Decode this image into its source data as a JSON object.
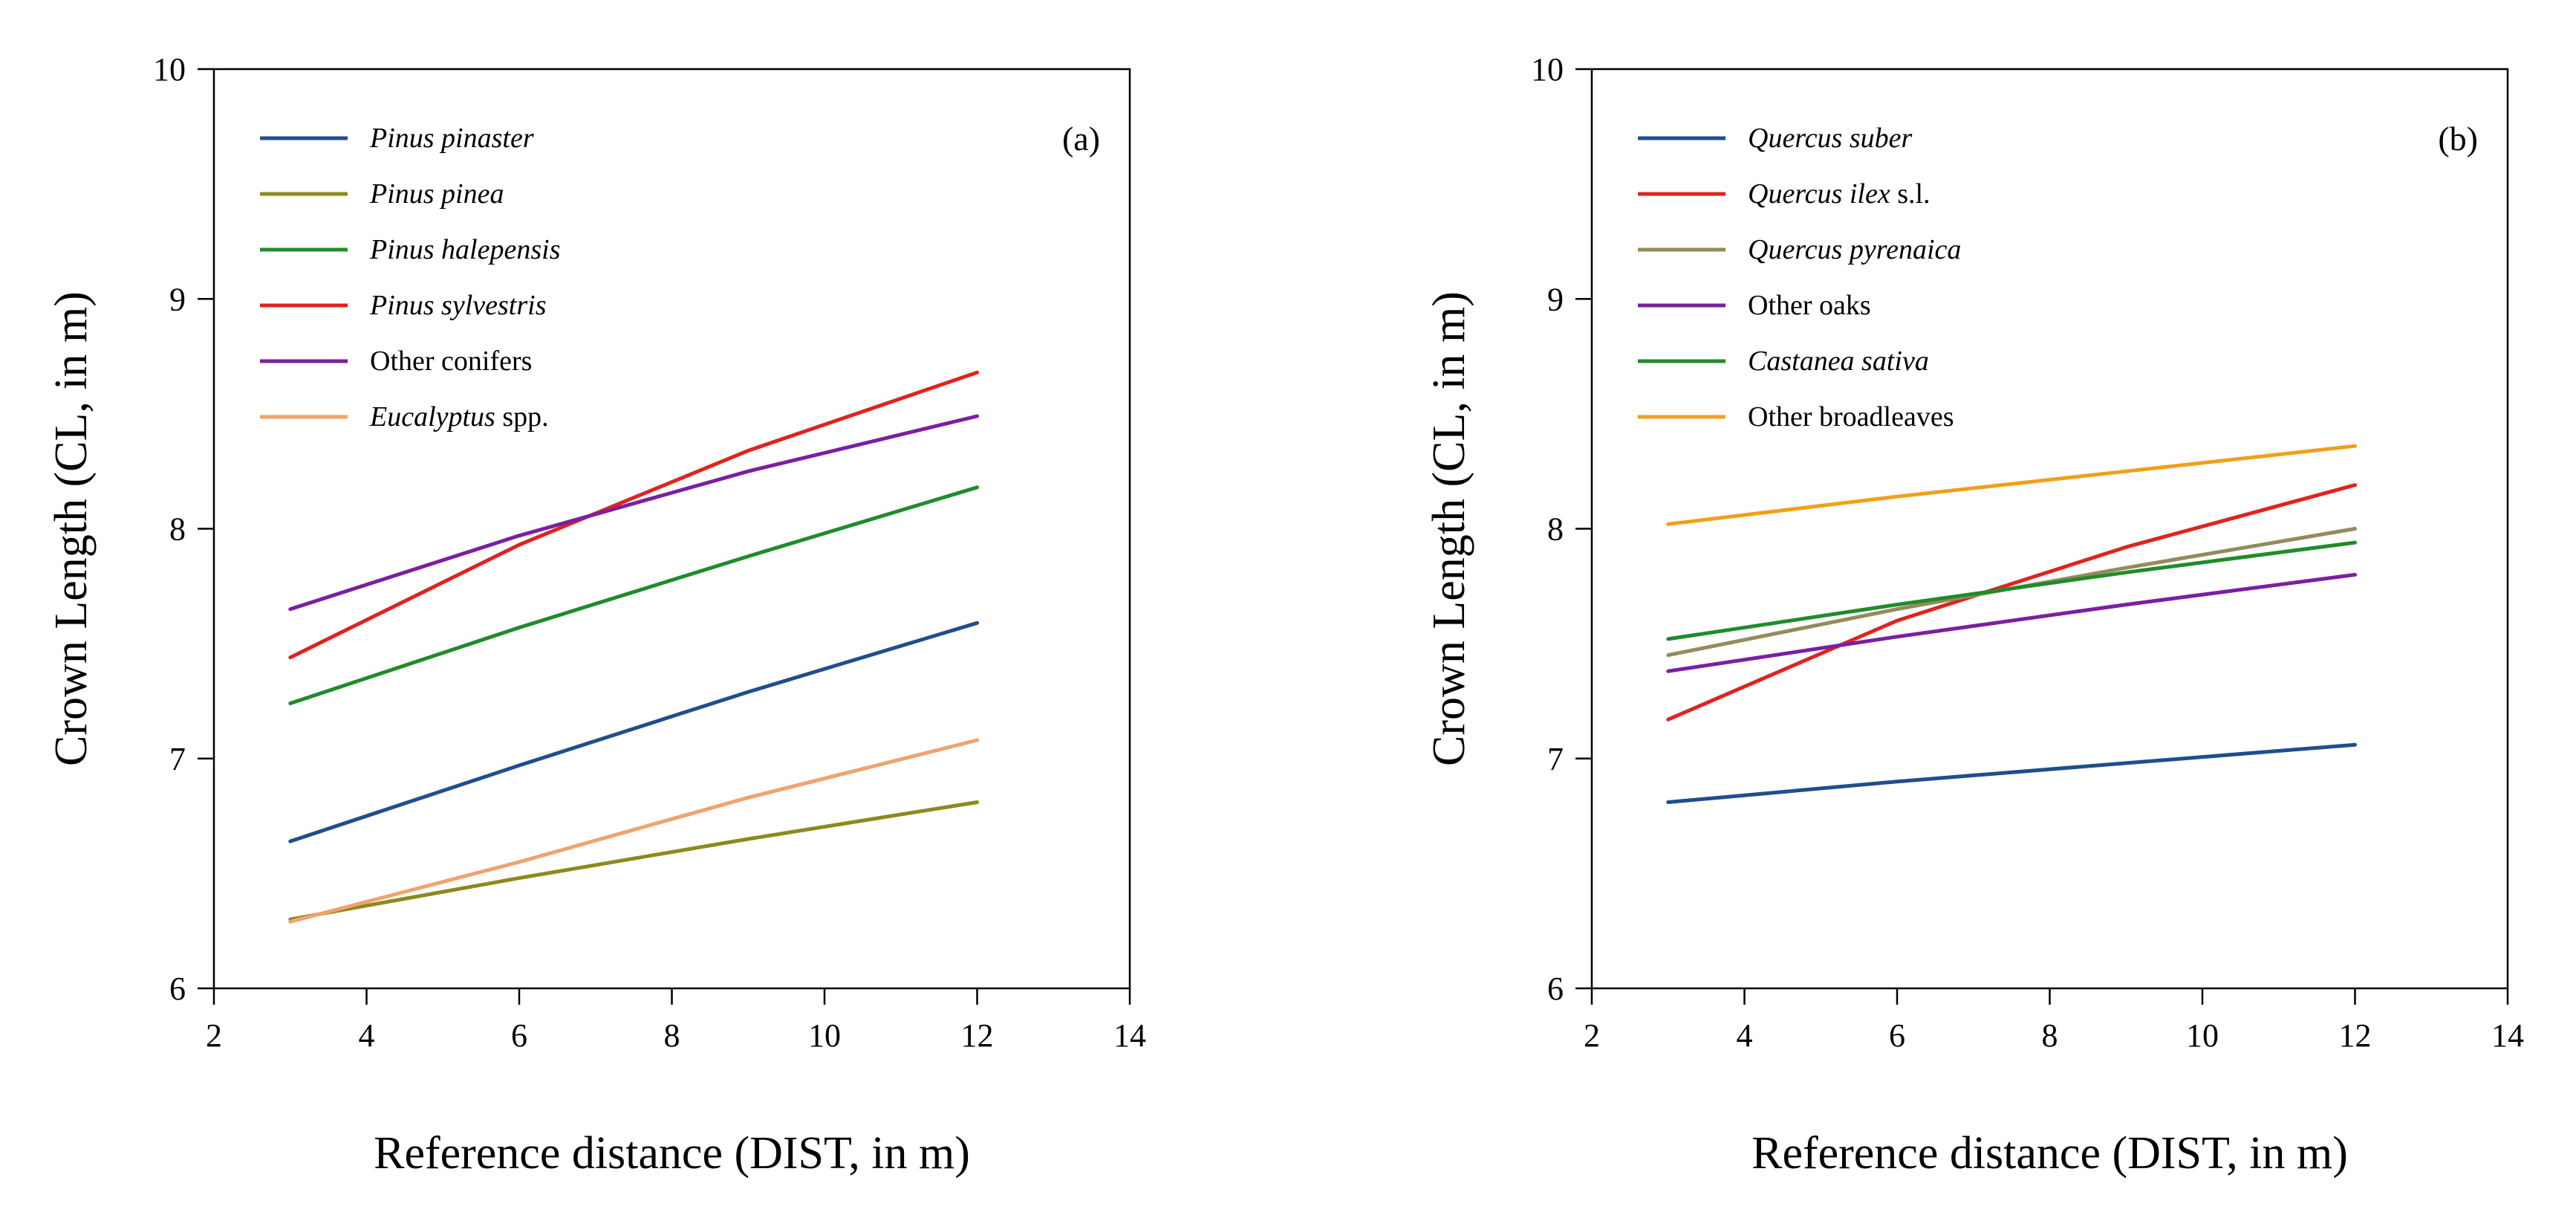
{
  "chart_data": [
    {
      "type": "line",
      "panel_label": "(a)",
      "xlabel": "Reference distance (DIST, in m)",
      "ylabel": "Crown Length (CL, in m)",
      "xlim": [
        2,
        14
      ],
      "ylim": [
        6,
        10
      ],
      "xticks": [
        2,
        4,
        6,
        8,
        10,
        12,
        14
      ],
      "yticks": [
        6,
        7,
        8,
        9,
        10
      ],
      "x": [
        3,
        6,
        9,
        12
      ],
      "legend_position": "top-left",
      "series": [
        {
          "name": "Pinus pinaster",
          "italic": "Pinus pinaster",
          "suffix": "",
          "color": "#1f4e8c",
          "values": [
            6.64,
            6.97,
            7.29,
            7.59
          ]
        },
        {
          "name": "Pinus pinea",
          "italic": "Pinus pinea",
          "suffix": "",
          "color": "#8c8a1c",
          "values": [
            6.3,
            6.48,
            6.65,
            6.81
          ]
        },
        {
          "name": "Pinus halepensis",
          "italic": "Pinus halepensis",
          "suffix": "",
          "color": "#1f8c2a",
          "values": [
            7.24,
            7.57,
            7.88,
            8.18
          ]
        },
        {
          "name": "Pinus sylvestris",
          "italic": "Pinus sylvestris",
          "suffix": "",
          "color": "#e0231f",
          "values": [
            7.44,
            7.93,
            8.34,
            8.68
          ]
        },
        {
          "name": "Other conifers",
          "italic": "",
          "suffix": "Other conifers",
          "color": "#7b1fa2",
          "values": [
            7.65,
            7.97,
            8.25,
            8.49
          ]
        },
        {
          "name": "Eucalyptus spp.",
          "italic": "Eucalyptus",
          "suffix": " spp.",
          "color": "#f0a36e",
          "values": [
            6.29,
            6.55,
            6.83,
            7.08
          ]
        }
      ]
    },
    {
      "type": "line",
      "panel_label": "(b)",
      "xlabel": "Reference distance (DIST, in m)",
      "ylabel": "Crown Length (CL, in m)",
      "xlim": [
        2,
        14
      ],
      "ylim": [
        6,
        10
      ],
      "xticks": [
        2,
        4,
        6,
        8,
        10,
        12,
        14
      ],
      "yticks": [
        6,
        7,
        8,
        9,
        10
      ],
      "x": [
        3,
        6,
        9,
        12
      ],
      "legend_position": "top-left",
      "series": [
        {
          "name": "Quercus suber",
          "italic": "Quercus suber",
          "suffix": "",
          "color": "#1f4e8c",
          "values": [
            6.81,
            6.9,
            6.98,
            7.06
          ]
        },
        {
          "name": "Quercus ilex s.l.",
          "italic": "Quercus ilex",
          "suffix": " s.l.",
          "color": "#e0231f",
          "values": [
            7.17,
            7.6,
            7.92,
            8.19
          ]
        },
        {
          "name": "Quercus pyrenaica",
          "italic": "Quercus pyrenaica",
          "suffix": "",
          "color": "#948a5c",
          "values": [
            7.45,
            7.65,
            7.83,
            8.0
          ]
        },
        {
          "name": "Other oaks",
          "italic": "",
          "suffix": "Other oaks",
          "color": "#7b1fa2",
          "values": [
            7.38,
            7.53,
            7.67,
            7.8
          ]
        },
        {
          "name": "Castanea sativa",
          "italic": "Castanea sativa",
          "suffix": "",
          "color": "#1f8c2a",
          "values": [
            7.52,
            7.67,
            7.81,
            7.94
          ]
        },
        {
          "name": "Other broadleaves",
          "italic": "",
          "suffix": "Other broadleaves",
          "color": "#f0a01c",
          "values": [
            8.02,
            8.14,
            8.25,
            8.36
          ]
        }
      ]
    }
  ]
}
